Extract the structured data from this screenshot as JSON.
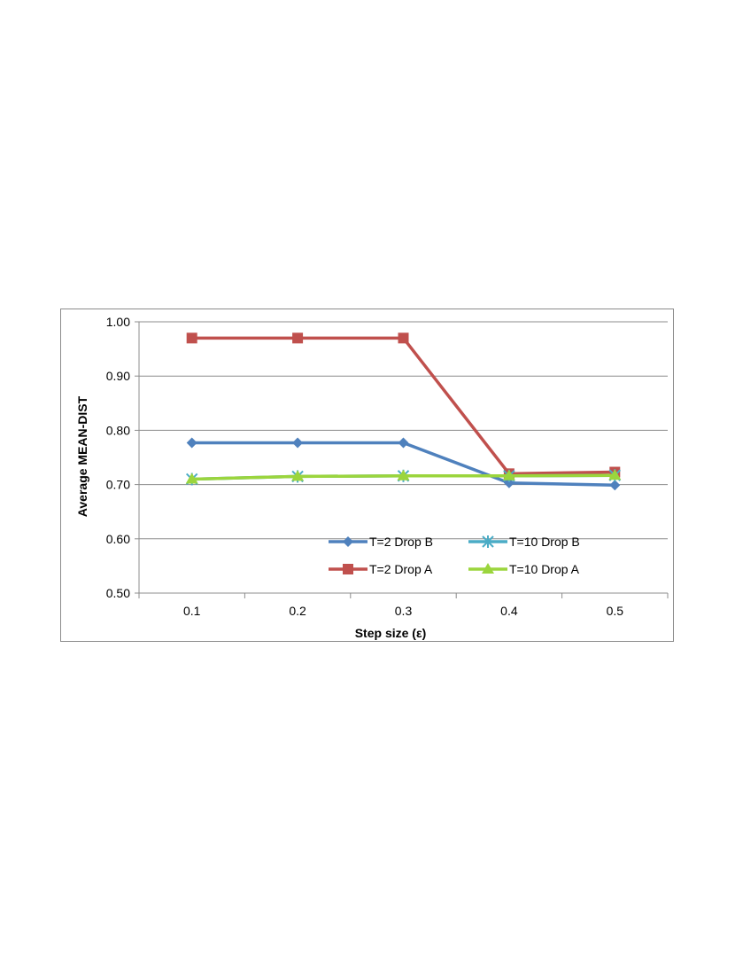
{
  "chart_data": {
    "type": "line",
    "title": "",
    "xlabel": "Step size (ε)",
    "ylabel": "Average MEAN-DIST",
    "categories": [
      "0.1",
      "0.2",
      "0.3",
      "0.4",
      "0.5"
    ],
    "ylim": [
      0.5,
      1.0
    ],
    "yticks": [
      "0.50",
      "0.60",
      "0.70",
      "0.80",
      "0.90",
      "1.00"
    ],
    "grid": true,
    "legend_position": "inside-bottom-right",
    "series": [
      {
        "name": "T=2 Drop B",
        "values": [
          0.777,
          0.777,
          0.777,
          0.703,
          0.699
        ],
        "color": "#4f81bd",
        "marker": "diamond"
      },
      {
        "name": "T=10 Drop B",
        "values": [
          0.71,
          0.715,
          0.716,
          0.716,
          0.717
        ],
        "color": "#4bacc6",
        "marker": "star"
      },
      {
        "name": "T=2 Drop A",
        "values": [
          0.97,
          0.97,
          0.97,
          0.72,
          0.723
        ],
        "color": "#c0504d",
        "marker": "square"
      },
      {
        "name": "T=10 Drop A",
        "values": [
          0.71,
          0.715,
          0.716,
          0.716,
          0.717
        ],
        "color": "#9bd53d",
        "marker": "triangle"
      }
    ]
  }
}
